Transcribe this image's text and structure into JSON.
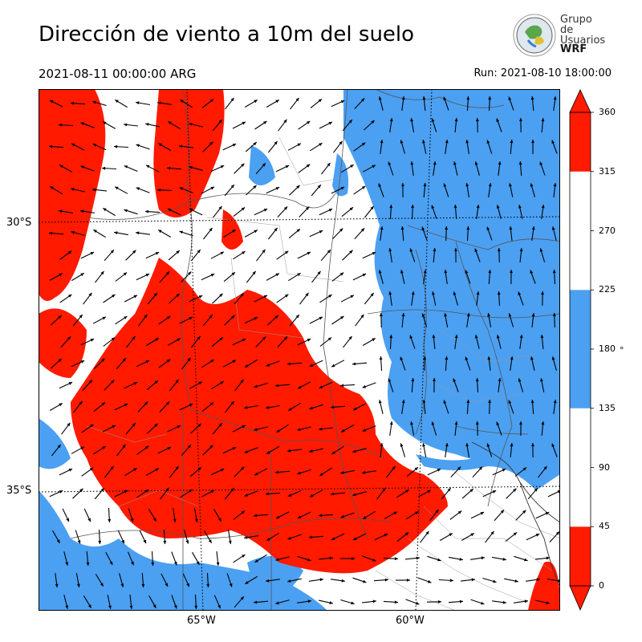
{
  "title": "Dirección de viento a 10m del suelo",
  "valid_time": "2021-08-11 00:00:00 ARG",
  "run_time": "Run: 2021-08-10 18:00:00",
  "logo": {
    "line1": "Grupo de",
    "line2": "Usuarios",
    "line3": "WRF",
    "icon": "globe-logo-icon"
  },
  "map": {
    "lon_ticks": [
      {
        "value": -65,
        "label": "65°W"
      },
      {
        "value": -60,
        "label": "60°W"
      }
    ],
    "lat_ticks": [
      {
        "value": -30,
        "label": "30°S"
      },
      {
        "value": -35,
        "label": "35°S"
      }
    ],
    "extent": {
      "lon_min": -69,
      "lon_max": -55.8,
      "lat_min": -37.2,
      "lat_max": -27.5
    },
    "colors": {
      "north": "#ff1a00",
      "south": "#4ba0f2",
      "other": "#ffffff"
    }
  },
  "colorbar": {
    "ticks": [
      "0",
      "45",
      "90",
      "135",
      "180",
      "225",
      "270",
      "315",
      "360"
    ],
    "unit": "°",
    "segments": [
      {
        "from": 0,
        "to": 45,
        "color": "#ff1a00"
      },
      {
        "from": 45,
        "to": 135,
        "color": "#ffffff"
      },
      {
        "from": 135,
        "to": 225,
        "color": "#4ba0f2"
      },
      {
        "from": 225,
        "to": 315,
        "color": "#ffffff"
      },
      {
        "from": 315,
        "to": 360,
        "color": "#ff1a00"
      }
    ]
  }
}
